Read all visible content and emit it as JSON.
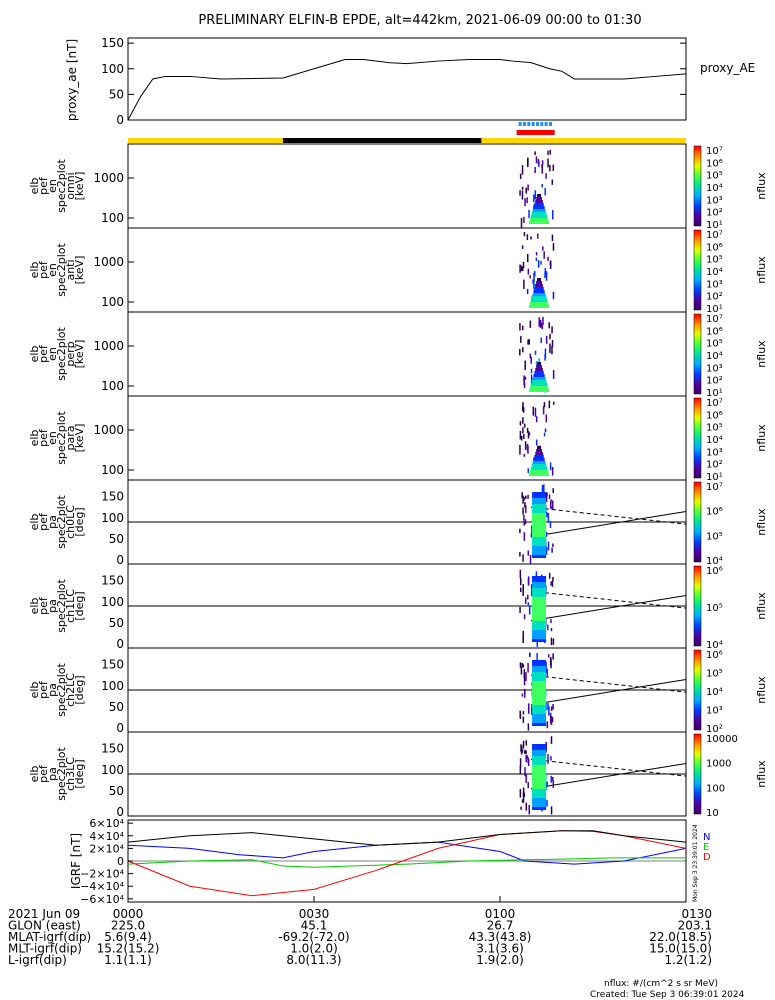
{
  "title": "PRELIMINARY ELFIN-B EPDE, alt=442km, 2021-06-09 00:00 to 01:30",
  "proxy_ae": {
    "ylabel": "proxy_ae [nT]",
    "legend": "proxy_AE",
    "yticks": [
      "150",
      "100",
      "50",
      "0"
    ]
  },
  "panels": [
    {
      "ylabel": [
        "elb",
        "pef",
        "en",
        "spec2plot",
        "omni",
        "[keV]"
      ],
      "kind": "energy",
      "yticks": [
        "1000",
        "100"
      ]
    },
    {
      "ylabel": [
        "elb",
        "pef",
        "en",
        "spec2plot",
        "anti",
        "[keV]"
      ],
      "kind": "energy",
      "yticks": [
        "1000",
        "100"
      ]
    },
    {
      "ylabel": [
        "elb",
        "pef",
        "en",
        "spec2plot",
        "perp",
        "[keV]"
      ],
      "kind": "energy",
      "yticks": [
        "1000",
        "100"
      ]
    },
    {
      "ylabel": [
        "elb",
        "pef",
        "en",
        "spec2plot",
        "para",
        "[keV]"
      ],
      "kind": "energy",
      "yticks": [
        "1000",
        "100"
      ]
    },
    {
      "ylabel": [
        "elb",
        "pef",
        "pa",
        "spec2plot",
        "ch0LC",
        "[deg]"
      ],
      "kind": "pitch",
      "yticks": [
        "150",
        "100",
        "50",
        "0"
      ]
    },
    {
      "ylabel": [
        "elb",
        "pef",
        "pa",
        "spec2plot",
        "ch1LC",
        "[deg]"
      ],
      "kind": "pitch",
      "yticks": [
        "150",
        "100",
        "50",
        "0"
      ]
    },
    {
      "ylabel": [
        "elb",
        "pef",
        "pa",
        "spec2plot",
        "ch2LC",
        "[deg]"
      ],
      "kind": "pitch",
      "yticks": [
        "150",
        "100",
        "50",
        "0"
      ]
    },
    {
      "ylabel": [
        "elb",
        "pef",
        "pa",
        "spec2plot",
        "ch3LC",
        "[deg]"
      ],
      "kind": "pitch",
      "yticks": [
        "150",
        "100",
        "50",
        "0"
      ]
    }
  ],
  "colorbars": [
    {
      "label": "nflux",
      "ticks": [
        "10⁷",
        "10⁶",
        "10⁵",
        "10⁴",
        "10³",
        "10²",
        "10¹"
      ]
    },
    {
      "label": "nflux",
      "ticks": [
        "10⁷",
        "10⁶",
        "10⁵",
        "10⁴",
        "10³",
        "10²",
        "10¹"
      ]
    },
    {
      "label": "nflux",
      "ticks": [
        "10⁷",
        "10⁶",
        "10⁵",
        "10⁴",
        "10³",
        "10²",
        "10¹"
      ]
    },
    {
      "label": "nflux",
      "ticks": [
        "10⁷",
        "10⁶",
        "10⁵",
        "10⁴",
        "10³",
        "10²",
        "10¹"
      ]
    },
    {
      "label": "nflux",
      "ticks": [
        "10⁷",
        "10⁶",
        "10⁵",
        "10⁴"
      ]
    },
    {
      "label": "nflux",
      "ticks": [
        "10⁶",
        "10⁵",
        "10⁴"
      ]
    },
    {
      "label": "nflux",
      "ticks": [
        "10⁶",
        "10⁵",
        "10⁴",
        "10³",
        "10²"
      ]
    },
    {
      "label": "nflux",
      "ticks": [
        "10000",
        "1000",
        "100",
        "10"
      ]
    }
  ],
  "igrf": {
    "ylabel": "IGRF [nT]",
    "yticks": [
      "6×10⁴",
      "4×10⁴",
      "2×10⁴",
      "0",
      "−2×10⁴",
      "−4×10⁴",
      "−6×10⁴"
    ],
    "legend": [
      "N",
      "E",
      "D"
    ],
    "legend_colors": [
      "#0000ff",
      "#00cc00",
      "#ff0000"
    ]
  },
  "footer": {
    "rows": [
      {
        "label": "2021 Jun 09",
        "values": [
          "0000",
          "0030",
          "0100",
          "0130"
        ]
      },
      {
        "label": "GLON (east)",
        "values": [
          "225.0",
          "45.1",
          "26.7",
          "203.1"
        ]
      },
      {
        "label": "MLAT-igrf(dip)",
        "values": [
          "5.6(9.4)",
          "-69.2(-72.0)",
          "43.3(43.8)",
          "22.0(18.5)"
        ]
      },
      {
        "label": "MLT-igrf(dip)",
        "values": [
          "15.2(15.2)",
          "1.0(2.0)",
          "3.1(3.6)",
          "15.0(15.0)"
        ]
      },
      {
        "label": "L-igrf(dip)",
        "values": [
          "1.1(1.1)",
          "8.0(11.3)",
          "1.9(2.0)",
          "1.2(1.2)"
        ]
      }
    ],
    "nflux_units": "nflux: #/(cm^2 s sr MeV)",
    "created": "Created: Tue Sep  3 06:39:01 2024",
    "side_stamp": "Mon Sep  3 23:39:01 2024"
  },
  "chart_data": {
    "type": "line",
    "x_range": [
      "00:00",
      "01:30"
    ],
    "proxy_ae": {
      "x_min": [
        0,
        2,
        4,
        6,
        10,
        15,
        25,
        35,
        38,
        42,
        45,
        50,
        55,
        60,
        62,
        65,
        68,
        70,
        72,
        75,
        80,
        85,
        90
      ],
      "y_nT": [
        0,
        45,
        80,
        85,
        85,
        80,
        82,
        118,
        118,
        112,
        110,
        115,
        118,
        118,
        115,
        112,
        100,
        95,
        80,
        80,
        80,
        85,
        90
      ],
      "ylim": [
        0,
        150
      ]
    },
    "orbit_bar": {
      "yellow_segments_min": [
        [
          0,
          25
        ],
        [
          57,
          90
        ]
      ],
      "black_segment_min": [
        25,
        57
      ]
    },
    "science_zone_min": [
      63,
      68.5
    ],
    "igrf": {
      "ylim": [
        -60000,
        60000
      ],
      "series": [
        {
          "name": "N",
          "color": "#0000ff",
          "x_min": [
            0,
            10,
            18,
            25,
            30,
            40,
            50,
            60,
            64,
            72,
            80,
            90
          ],
          "y": [
            25000,
            20000,
            10000,
            5000,
            15000,
            25000,
            30000,
            15000,
            0,
            -5000,
            0,
            20000
          ]
        },
        {
          "name": "E",
          "color": "#00cc00",
          "x_min": [
            0,
            10,
            20,
            25,
            30,
            45,
            55,
            64,
            70,
            78,
            90
          ],
          "y": [
            -5000,
            0,
            2000,
            -8000,
            -10000,
            -5000,
            0,
            2000,
            3000,
            5000,
            5000
          ]
        },
        {
          "name": "D",
          "color": "#ff0000",
          "x_min": [
            0,
            10,
            20,
            30,
            40,
            50,
            60,
            70,
            75,
            80,
            90
          ],
          "y": [
            0,
            -40000,
            -55000,
            -45000,
            -15000,
            20000,
            42000,
            48000,
            47000,
            40000,
            20000
          ]
        },
        {
          "name": "Total",
          "color": "#000000",
          "x_min": [
            0,
            10,
            20,
            30,
            40,
            50,
            60,
            70,
            75,
            80,
            90
          ],
          "y": [
            30000,
            40000,
            45000,
            35000,
            25000,
            30000,
            42000,
            48000,
            48000,
            40000,
            30000
          ]
        }
      ]
    }
  }
}
